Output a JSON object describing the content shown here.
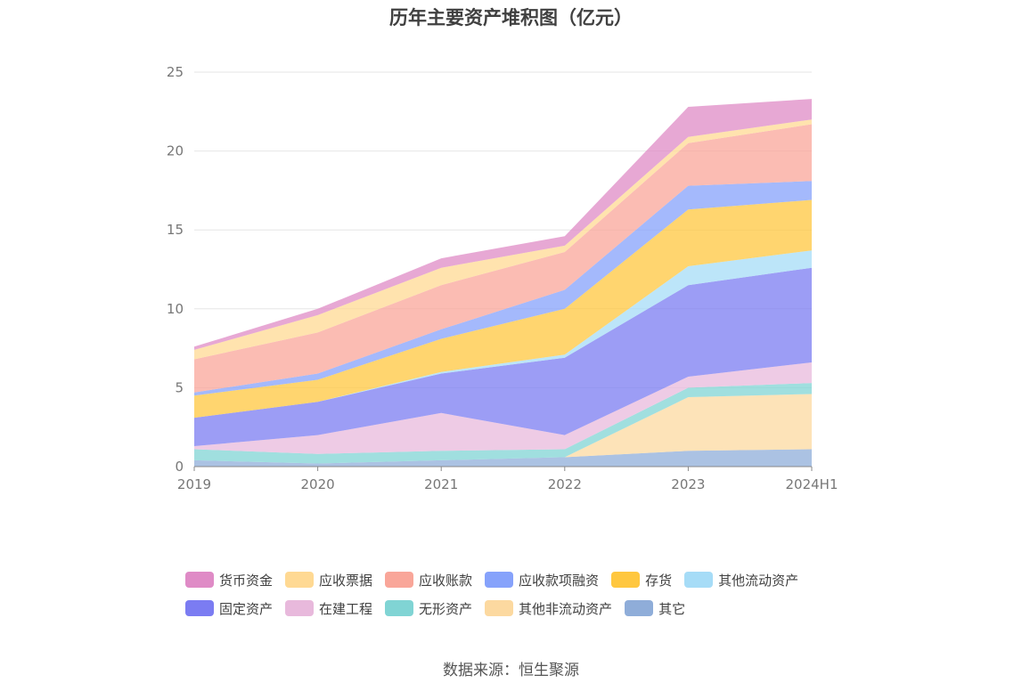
{
  "chart_data": {
    "type": "area",
    "stacked": true,
    "title": "历年主要资产堆积图（亿元）",
    "source": "数据来源：恒生聚源",
    "categories": [
      "2019",
      "2020",
      "2021",
      "2022",
      "2023",
      "2024H1"
    ],
    "ylim": [
      0,
      25
    ],
    "yticks": [
      "0",
      "5",
      "10",
      "15",
      "20",
      "25"
    ],
    "grid": true,
    "legend_position": "bottom",
    "series": [
      {
        "name": "其它",
        "color": "#8fadd9",
        "values": [
          0.4,
          0.2,
          0.4,
          0.6,
          1.0,
          1.1
        ]
      },
      {
        "name": "其他非流动资产",
        "color": "#fcd9a0",
        "values": [
          0.0,
          0.0,
          0.0,
          0.0,
          3.4,
          3.5
        ]
      },
      {
        "name": "无形资产",
        "color": "#80d4d4",
        "values": [
          0.7,
          0.6,
          0.6,
          0.5,
          0.6,
          0.7
        ]
      },
      {
        "name": "在建工程",
        "color": "#e8b9dc",
        "values": [
          0.2,
          1.2,
          2.4,
          0.9,
          0.7,
          1.3
        ]
      },
      {
        "name": "固定资产",
        "color": "#7b7cf2",
        "values": [
          1.8,
          2.1,
          2.5,
          4.9,
          5.8,
          6.0
        ]
      },
      {
        "name": "其他流动资产",
        "color": "#a6dcf7",
        "values": [
          0.0,
          0.0,
          0.1,
          0.2,
          1.2,
          1.1
        ]
      },
      {
        "name": "存货",
        "color": "#ffc73f",
        "values": [
          1.4,
          1.4,
          2.1,
          2.9,
          3.6,
          3.2
        ]
      },
      {
        "name": "应收款项融资",
        "color": "#86a2fb",
        "values": [
          0.2,
          0.4,
          0.6,
          1.2,
          1.5,
          1.2
        ]
      },
      {
        "name": "应收账款",
        "color": "#f9a699",
        "values": [
          2.1,
          2.6,
          2.8,
          2.4,
          2.7,
          3.6
        ]
      },
      {
        "name": "应收票据",
        "color": "#ffd993",
        "values": [
          0.6,
          1.1,
          1.1,
          0.4,
          0.4,
          0.3
        ]
      },
      {
        "name": "货币资金",
        "color": "#df8bc6",
        "values": [
          0.2,
          0.4,
          0.6,
          0.6,
          1.9,
          1.3
        ]
      }
    ],
    "legend_rows": [
      [
        {
          "label": "货币资金",
          "color": "#df8bc6"
        },
        {
          "label": "应收票据",
          "color": "#ffd993"
        },
        {
          "label": "应收账款",
          "color": "#f9a699"
        },
        {
          "label": "应收款项融资",
          "color": "#86a2fb"
        },
        {
          "label": "存货",
          "color": "#ffc73f"
        },
        {
          "label": "其他流动资产",
          "color": "#a6dcf7"
        }
      ],
      [
        {
          "label": "固定资产",
          "color": "#7b7cf2"
        },
        {
          "label": "在建工程",
          "color": "#e8b9dc"
        },
        {
          "label": "无形资产",
          "color": "#80d4d4"
        },
        {
          "label": "其他非流动资产",
          "color": "#fcd9a0"
        },
        {
          "label": "其它",
          "color": "#8fadd9"
        }
      ]
    ]
  }
}
